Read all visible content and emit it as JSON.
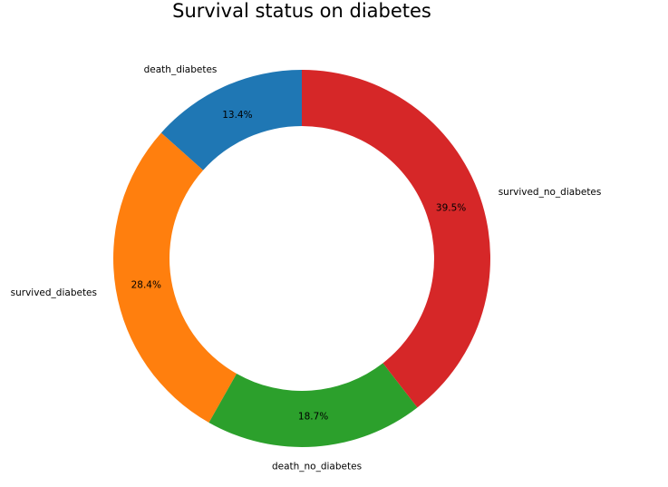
{
  "chart_data": {
    "type": "pie",
    "variant": "donut",
    "title": "Survival status on diabetes",
    "start_angle_deg": 90,
    "direction": "counterclockwise",
    "slices": [
      {
        "label": "death_diabetes",
        "percent": 13.4,
        "percent_label": "13.4%",
        "color": "#1f77b4"
      },
      {
        "label": "survived_diabetes",
        "percent": 28.4,
        "percent_label": "28.4%",
        "color": "#ff7f0e"
      },
      {
        "label": "death_no_diabetes",
        "percent": 18.7,
        "percent_label": "18.7%",
        "color": "#2ca02c"
      },
      {
        "label": "survived_no_diabetes",
        "percent": 39.5,
        "percent_label": "39.5%",
        "color": "#d62728"
      }
    ]
  }
}
